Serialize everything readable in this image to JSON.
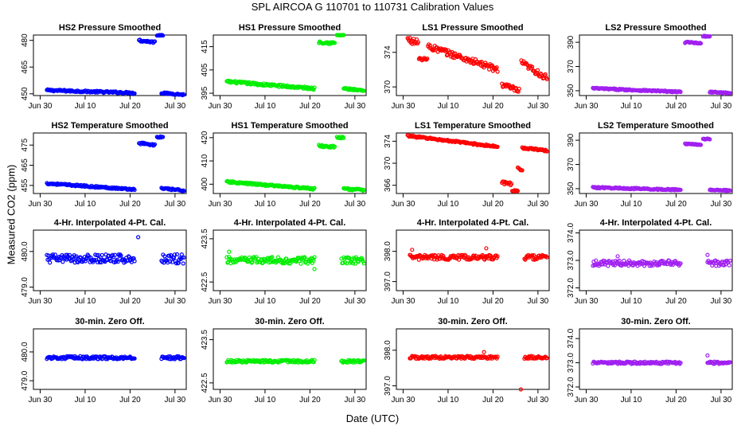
{
  "figure": {
    "title": "SPL   AIRCOA G  110701 to 110731   Calibration Values",
    "xlabel": "Date (UTC)",
    "ylabel": "Measured CO2 (ppm)",
    "x_ticks": [
      "Jun 30",
      "Jul 10",
      "Jul 20",
      "Jul 30"
    ],
    "x_tick_days": [
      0,
      10,
      20,
      30
    ],
    "x_range_days": [
      -1.5,
      32.5
    ]
  },
  "series_colors": {
    "HS2": "#0000ff",
    "HS1": "#00ee00",
    "LS1": "#ff0000",
    "LS2": "#a020f0"
  },
  "chart_data": [
    {
      "type": "scatter",
      "title": "HS2 Pressure Smoothed",
      "series": "HS2",
      "ylim": [
        449,
        483
      ],
      "yticks": [
        450,
        465,
        480
      ],
      "segments": [
        {
          "x0": 1.5,
          "x1": 21,
          "y0": 452,
          "y1": 450.5,
          "noise": 0.5,
          "dip": null
        },
        {
          "x0": 22,
          "x1": 25.5,
          "y0": 480,
          "y1": 479,
          "noise": 0.6,
          "dip": null
        },
        {
          "x0": 26,
          "x1": 27.3,
          "y0": 483,
          "y1": 483,
          "noise": 0.4,
          "dip": null
        },
        {
          "x0": 27,
          "x1": 32,
          "y0": 450.5,
          "y1": 449.5,
          "noise": 0.4,
          "dip": null
        }
      ]
    },
    {
      "type": "scatter",
      "title": "HS1 Pressure Smoothed",
      "series": "HS1",
      "ylim": [
        394,
        420
      ],
      "yticks": [
        395,
        405,
        415
      ],
      "segments": [
        {
          "x0": 1.5,
          "x1": 21,
          "y0": 400,
          "y1": 397,
          "noise": 0.5,
          "dip": null
        },
        {
          "x0": 22,
          "x1": 25.5,
          "y0": 417,
          "y1": 416.5,
          "noise": 0.5,
          "dip": null
        },
        {
          "x0": 26,
          "x1": 27.5,
          "y0": 420,
          "y1": 420,
          "noise": 0.4,
          "dip": null
        },
        {
          "x0": 27.5,
          "x1": 32,
          "y0": 397,
          "y1": 396,
          "noise": 0.4,
          "dip": null
        }
      ]
    },
    {
      "type": "scatter",
      "title": "LS1 Pressure Smoothed",
      "series": "LS1",
      "ylim": [
        369,
        376
      ],
      "yticks": [
        370,
        374
      ],
      "segments": [
        {
          "x0": 1,
          "x1": 21,
          "y0": 375.5,
          "y1": 372,
          "noise": 0.35,
          "dip": [
            4.5,
            373.2
          ]
        },
        {
          "x0": 22,
          "x1": 25.8,
          "y0": 370.3,
          "y1": 369.5,
          "noise": 0.3,
          "dip": null
        },
        {
          "x0": 26.3,
          "x1": 32,
          "y0": 372.8,
          "y1": 371,
          "noise": 0.35,
          "dip": null
        }
      ]
    },
    {
      "type": "scatter",
      "title": "LS2 Pressure Smoothed",
      "series": "LS2",
      "ylim": [
        346,
        396
      ],
      "yticks": [
        350,
        370,
        390
      ],
      "segments": [
        {
          "x0": 1.5,
          "x1": 21,
          "y0": 352,
          "y1": 349,
          "noise": 0.6,
          "dip": null
        },
        {
          "x0": 22,
          "x1": 25.5,
          "y0": 390,
          "y1": 389.5,
          "noise": 0.6,
          "dip": null
        },
        {
          "x0": 26,
          "x1": 27.5,
          "y0": 395,
          "y1": 395,
          "noise": 0.4,
          "dip": null
        },
        {
          "x0": 27.5,
          "x1": 32,
          "y0": 349,
          "y1": 348,
          "noise": 0.5,
          "dip": null
        }
      ]
    },
    {
      "type": "scatter",
      "title": "HS2 Temperature Smoothed",
      "series": "HS2",
      "ylim": [
        451,
        481
      ],
      "yticks": [
        455,
        465,
        475
      ],
      "segments": [
        {
          "x0": 1.5,
          "x1": 21,
          "y0": 456,
          "y1": 453,
          "noise": 0.4,
          "dip": null
        },
        {
          "x0": 22,
          "x1": 25.5,
          "y0": 476,
          "y1": 475,
          "noise": 0.5,
          "dip": null
        },
        {
          "x0": 26,
          "x1": 27.3,
          "y0": 479,
          "y1": 479,
          "noise": 0.4,
          "dip": null
        },
        {
          "x0": 27,
          "x1": 32,
          "y0": 453.5,
          "y1": 452.5,
          "noise": 0.4,
          "dip": null
        }
      ]
    },
    {
      "type": "scatter",
      "title": "HS1 Temperature Smoothed",
      "series": "HS1",
      "ylim": [
        396,
        422
      ],
      "yticks": [
        400,
        410,
        420
      ],
      "segments": [
        {
          "x0": 1.5,
          "x1": 21,
          "y0": 401,
          "y1": 398,
          "noise": 0.4,
          "dip": null
        },
        {
          "x0": 22,
          "x1": 25.5,
          "y0": 416.5,
          "y1": 416,
          "noise": 0.5,
          "dip": null
        },
        {
          "x0": 26,
          "x1": 27.5,
          "y0": 420,
          "y1": 420,
          "noise": 0.4,
          "dip": null
        },
        {
          "x0": 27.5,
          "x1": 32,
          "y0": 398,
          "y1": 397.5,
          "noise": 0.4,
          "dip": null
        }
      ]
    },
    {
      "type": "scatter",
      "title": "LS1 Temperature Smoothed",
      "series": "LS1",
      "ylim": [
        364.5,
        375.5
      ],
      "yticks": [
        366,
        370,
        374
      ],
      "segments": [
        {
          "x0": 1,
          "x1": 21,
          "y0": 375,
          "y1": 373,
          "noise": 0.15,
          "dip": null
        },
        {
          "x0": 22,
          "x1": 25.5,
          "y0": 366.5,
          "y1": 366,
          "noise": 0.3,
          "dip": [
            25.2,
            365
          ]
        },
        {
          "x0": 25.5,
          "x1": 26.5,
          "y0": 369,
          "y1": 369,
          "noise": 0.3,
          "dip": null
        },
        {
          "x0": 26.5,
          "x1": 32,
          "y0": 372.8,
          "y1": 372.3,
          "noise": 0.15,
          "dip": null
        }
      ]
    },
    {
      "type": "scatter",
      "title": "LS2 Temperature Smoothed",
      "series": "LS2",
      "ylim": [
        346,
        396
      ],
      "yticks": [
        350,
        370,
        390
      ],
      "segments": [
        {
          "x0": 1.5,
          "x1": 21,
          "y0": 351,
          "y1": 349,
          "noise": 0.6,
          "dip": null
        },
        {
          "x0": 22,
          "x1": 25.5,
          "y0": 387,
          "y1": 386.5,
          "noise": 0.5,
          "dip": null
        },
        {
          "x0": 26,
          "x1": 27.5,
          "y0": 391,
          "y1": 391,
          "noise": 0.4,
          "dip": null
        },
        {
          "x0": 27.5,
          "x1": 32,
          "y0": 349,
          "y1": 348.5,
          "noise": 0.4,
          "dip": null
        }
      ]
    },
    {
      "type": "scatter",
      "title": "4-Hr. Interpolated 4-Pt. Cal.",
      "series": "HS2",
      "ylim": [
        478.9,
        480.6
      ],
      "yticks": [
        479.0,
        480.0
      ],
      "decimals": 1,
      "segments": [
        {
          "x0": 1.5,
          "x1": 21,
          "y0": 479.8,
          "y1": 479.8,
          "noise": 0.12,
          "dip": null
        },
        {
          "x0": 27,
          "x1": 32,
          "y0": 479.8,
          "y1": 479.8,
          "noise": 0.14,
          "dip": null
        }
      ],
      "outliers": [
        [
          21.8,
          480.4
        ]
      ]
    },
    {
      "type": "scatter",
      "title": "4-Hr. Interpolated 4-Pt. Cal.",
      "series": "HS1",
      "ylim": [
        422.3,
        423.7
      ],
      "yticks": [
        422.5,
        423.5
      ],
      "decimals": 1,
      "segments": [
        {
          "x0": 1.5,
          "x1": 21,
          "y0": 423.0,
          "y1": 423.0,
          "noise": 0.08,
          "dip": null
        },
        {
          "x0": 27,
          "x1": 32,
          "y0": 423.0,
          "y1": 423.0,
          "noise": 0.08,
          "dip": null
        }
      ],
      "outliers": [
        [
          2,
          423.2
        ],
        [
          21,
          422.8
        ]
      ]
    },
    {
      "type": "scatter",
      "title": "4-Hr. Interpolated 4-Pt. Cal.",
      "series": "LS1",
      "ylim": [
        396.7,
        398.7
      ],
      "yticks": [
        397.0,
        398.0
      ],
      "decimals": 1,
      "segments": [
        {
          "x0": 1.5,
          "x1": 21,
          "y0": 397.8,
          "y1": 397.8,
          "noise": 0.08,
          "dip": null
        },
        {
          "x0": 27,
          "x1": 32,
          "y0": 397.8,
          "y1": 397.8,
          "noise": 0.08,
          "dip": null
        }
      ],
      "outliers": [
        [
          2,
          398.05
        ],
        [
          18.5,
          398.1
        ]
      ]
    },
    {
      "type": "scatter",
      "title": "4-Hr. Interpolated 4-Pt. Cal.",
      "series": "LS2",
      "ylim": [
        371.9,
        374.1
      ],
      "yticks": [
        372.0,
        373.0,
        374.0
      ],
      "decimals": 1,
      "segments": [
        {
          "x0": 1.5,
          "x1": 21,
          "y0": 372.9,
          "y1": 372.9,
          "noise": 0.1,
          "dip": null
        },
        {
          "x0": 27,
          "x1": 32,
          "y0": 372.9,
          "y1": 372.9,
          "noise": 0.1,
          "dip": null
        }
      ],
      "outliers": [
        [
          7,
          373.15
        ],
        [
          27,
          373.2
        ]
      ]
    },
    {
      "type": "scatter",
      "title": "30-min. Zero Off.",
      "series": "HS2",
      "ylim": [
        478.7,
        480.8
      ],
      "yticks": [
        479.0,
        480.0
      ],
      "decimals": 1,
      "segments": [
        {
          "x0": 1.5,
          "x1": 21,
          "y0": 479.8,
          "y1": 479.8,
          "noise": 0.05,
          "dip": null
        },
        {
          "x0": 27,
          "x1": 32,
          "y0": 479.8,
          "y1": 479.8,
          "noise": 0.05,
          "dip": null
        }
      ]
    },
    {
      "type": "scatter",
      "title": "30-min. Zero Off.",
      "series": "HS1",
      "ylim": [
        422.35,
        423.75
      ],
      "yticks": [
        422.5,
        423.5
      ],
      "decimals": 1,
      "segments": [
        {
          "x0": 1.5,
          "x1": 21,
          "y0": 423.0,
          "y1": 423.0,
          "noise": 0.03,
          "dip": null
        },
        {
          "x0": 27,
          "x1": 32,
          "y0": 423.0,
          "y1": 423.0,
          "noise": 0.03,
          "dip": null
        }
      ]
    },
    {
      "type": "scatter",
      "title": "30-min. Zero Off.",
      "series": "LS1",
      "ylim": [
        396.9,
        398.6
      ],
      "yticks": [
        397.0,
        398.0
      ],
      "decimals": 1,
      "segments": [
        {
          "x0": 1.5,
          "x1": 21,
          "y0": 397.8,
          "y1": 397.8,
          "noise": 0.04,
          "dip": null
        },
        {
          "x0": 27,
          "x1": 32,
          "y0": 397.8,
          "y1": 397.8,
          "noise": 0.04,
          "dip": null
        }
      ],
      "outliers": [
        [
          18,
          397.95
        ],
        [
          26.2,
          396.9
        ]
      ]
    },
    {
      "type": "scatter",
      "title": "30-min. Zero Off.",
      "series": "LS2",
      "ylim": [
        371.9,
        374.4
      ],
      "yticks": [
        372.0,
        373.0,
        374.0
      ],
      "decimals": 1,
      "segments": [
        {
          "x0": 1.5,
          "x1": 21,
          "y0": 373.0,
          "y1": 373.0,
          "noise": 0.05,
          "dip": null
        },
        {
          "x0": 27,
          "x1": 32,
          "y0": 373.0,
          "y1": 373.0,
          "noise": 0.05,
          "dip": null
        }
      ],
      "outliers": [
        [
          27,
          373.3
        ]
      ]
    }
  ]
}
